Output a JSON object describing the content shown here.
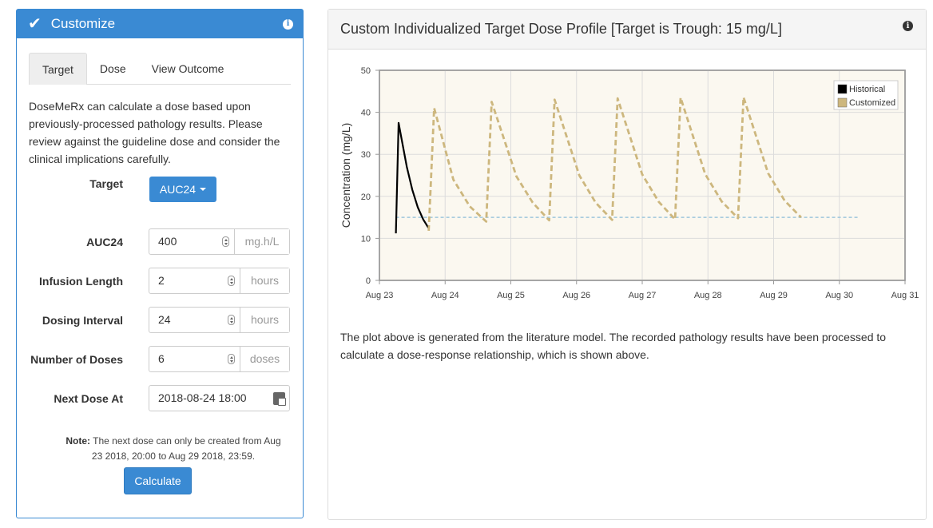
{
  "customize": {
    "title": "Customize",
    "check_icon": "check-icon",
    "info_icon": "info-icon",
    "tabs": [
      {
        "label": "Target",
        "active": true
      },
      {
        "label": "Dose",
        "active": false
      },
      {
        "label": "View Outcome",
        "active": false
      }
    ],
    "description": "DoseMeRx can calculate a dose based upon previously-processed pathology results. Please review against the guideline dose and consider the clinical implications carefully.",
    "target": {
      "label": "Target",
      "value": "AUC24"
    },
    "fields": [
      {
        "label": "AUC24",
        "value": "400",
        "unit": "mg.h/L"
      },
      {
        "label": "Infusion Length",
        "value": "2",
        "unit": "hours"
      },
      {
        "label": "Dosing Interval",
        "value": "24",
        "unit": "hours"
      },
      {
        "label": "Number of Doses",
        "value": "6",
        "unit": "doses"
      }
    ],
    "next_dose": {
      "label": "Next Dose At",
      "value": "2018-08-24 18:00",
      "icon": "calendar-icon"
    },
    "note_label": "Note:",
    "note_text": " The next dose can only be created from Aug 23 2018, 20:00 to Aug 29 2018, 23:59.",
    "calculate_label": "Calculate"
  },
  "profile": {
    "title": "Custom Individualized Target Dose Profile [Target is Trough: 15 mg/L]",
    "info_icon": "info-icon",
    "caption": "The plot above is generated from the literature model. The recorded pathology results have been processed to calculate a dose-response relationship, which is shown above."
  },
  "colors": {
    "primary": "#3a8ad3",
    "historical": "#000000",
    "customized": "#cdb77e",
    "target_line": "#9ec6dc",
    "plot_bg": "#fbf8f0"
  },
  "chart_data": {
    "type": "line",
    "title": "",
    "xlabel": "",
    "ylabel": "Concentration (mg/L)",
    "xlim": [
      "Aug 23",
      "Aug 31"
    ],
    "ylim": [
      0,
      50
    ],
    "x_ticks": [
      "Aug 23",
      "Aug 24",
      "Aug 25",
      "Aug 26",
      "Aug 27",
      "Aug 28",
      "Aug 29",
      "Aug 30",
      "Aug 31"
    ],
    "y_ticks": [
      0,
      10,
      20,
      30,
      40,
      50
    ],
    "grid": true,
    "legend_position": "top-right",
    "target_line": {
      "y": 15,
      "from": "Aug 23 06:00",
      "to": "Aug 30 07:00"
    },
    "series": [
      {
        "name": "Historical",
        "style": "solid",
        "points": [
          [
            "Aug 23 06:00",
            11.2
          ],
          [
            "Aug 23 07:00",
            37.5
          ],
          [
            "Aug 23 08:00",
            34.0
          ],
          [
            "Aug 23 10:00",
            27.0
          ],
          [
            "Aug 23 12:00",
            21.6
          ],
          [
            "Aug 23 14:00",
            17.4
          ],
          [
            "Aug 23 16:00",
            14.5
          ],
          [
            "Aug 23 18:00",
            12.4
          ]
        ]
      },
      {
        "name": "Customized",
        "style": "dashed",
        "points": [
          [
            "Aug 23 18:00",
            11.8
          ],
          [
            "Aug 23 20:00",
            41.0
          ],
          [
            "Aug 24 03:00",
            24.0
          ],
          [
            "Aug 24 09:00",
            17.6
          ],
          [
            "Aug 24 15:00",
            14.0
          ],
          [
            "Aug 24 17:00",
            42.5
          ],
          [
            "Aug 25 02:00",
            24.8
          ],
          [
            "Aug 25 08:00",
            18.5
          ],
          [
            "Aug 25 14:00",
            14.3
          ],
          [
            "Aug 25 16:00",
            43.0
          ],
          [
            "Aug 26 01:00",
            25.0
          ],
          [
            "Aug 26 07:00",
            18.5
          ],
          [
            "Aug 26 13:00",
            14.4
          ],
          [
            "Aug 26 15:00",
            43.3
          ],
          [
            "Aug 27 00:00",
            25.2
          ],
          [
            "Aug 27 06:00",
            18.7
          ],
          [
            "Aug 27 12:00",
            14.5
          ],
          [
            "Aug 27 14:00",
            43.5
          ],
          [
            "Aug 27 23:00",
            25.3
          ],
          [
            "Aug 28 05:00",
            18.8
          ],
          [
            "Aug 28 11:00",
            14.8
          ],
          [
            "Aug 28 13:00",
            43.6
          ],
          [
            "Aug 28 22:00",
            25.5
          ],
          [
            "Aug 29 04:00",
            19.0
          ],
          [
            "Aug 29 10:00",
            15.0
          ]
        ]
      }
    ]
  }
}
